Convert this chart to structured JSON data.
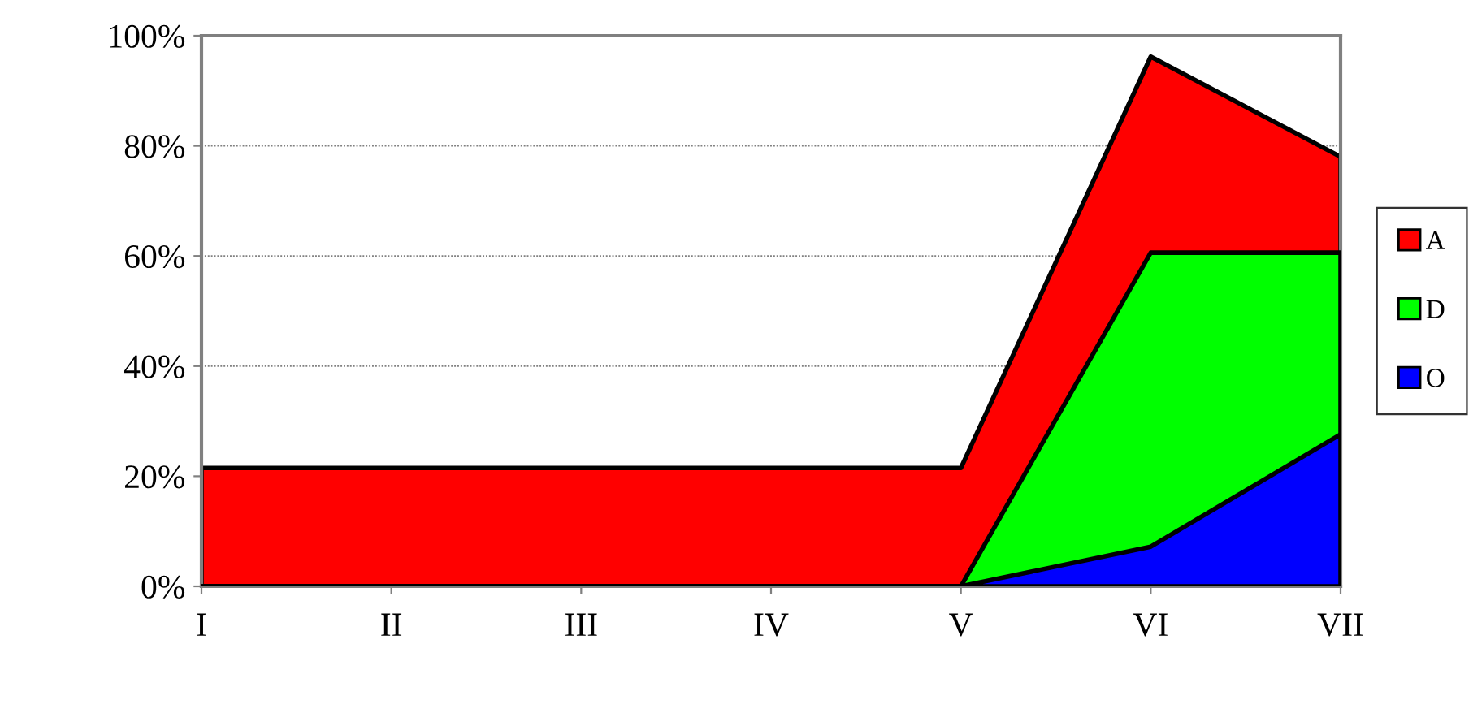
{
  "chart_data": {
    "type": "area",
    "categories": [
      "I",
      "II",
      "III",
      "IV",
      "V",
      "VI",
      "VII"
    ],
    "series": [
      {
        "name": "A",
        "color": "#ff0000",
        "values": [
          21.5,
          21.5,
          21.5,
          21.5,
          21.5,
          96.2,
          78
        ]
      },
      {
        "name": "D",
        "color": "#00ff00",
        "values": [
          0,
          0,
          0,
          0,
          0,
          60.6,
          60.6
        ]
      },
      {
        "name": "O",
        "color": "#0000ff",
        "values": [
          0,
          0,
          0,
          0,
          0,
          7.2,
          27.6
        ]
      }
    ],
    "ylim": [
      0,
      100
    ],
    "yticks": [
      {
        "value": 0,
        "label": "0%"
      },
      {
        "value": 20,
        "label": "20%"
      },
      {
        "value": 40,
        "label": "40%"
      },
      {
        "value": 60,
        "label": "60%"
      },
      {
        "value": 80,
        "label": "80%"
      },
      {
        "value": 100,
        "label": "100%"
      }
    ],
    "grid": "y",
    "legend": "right"
  }
}
